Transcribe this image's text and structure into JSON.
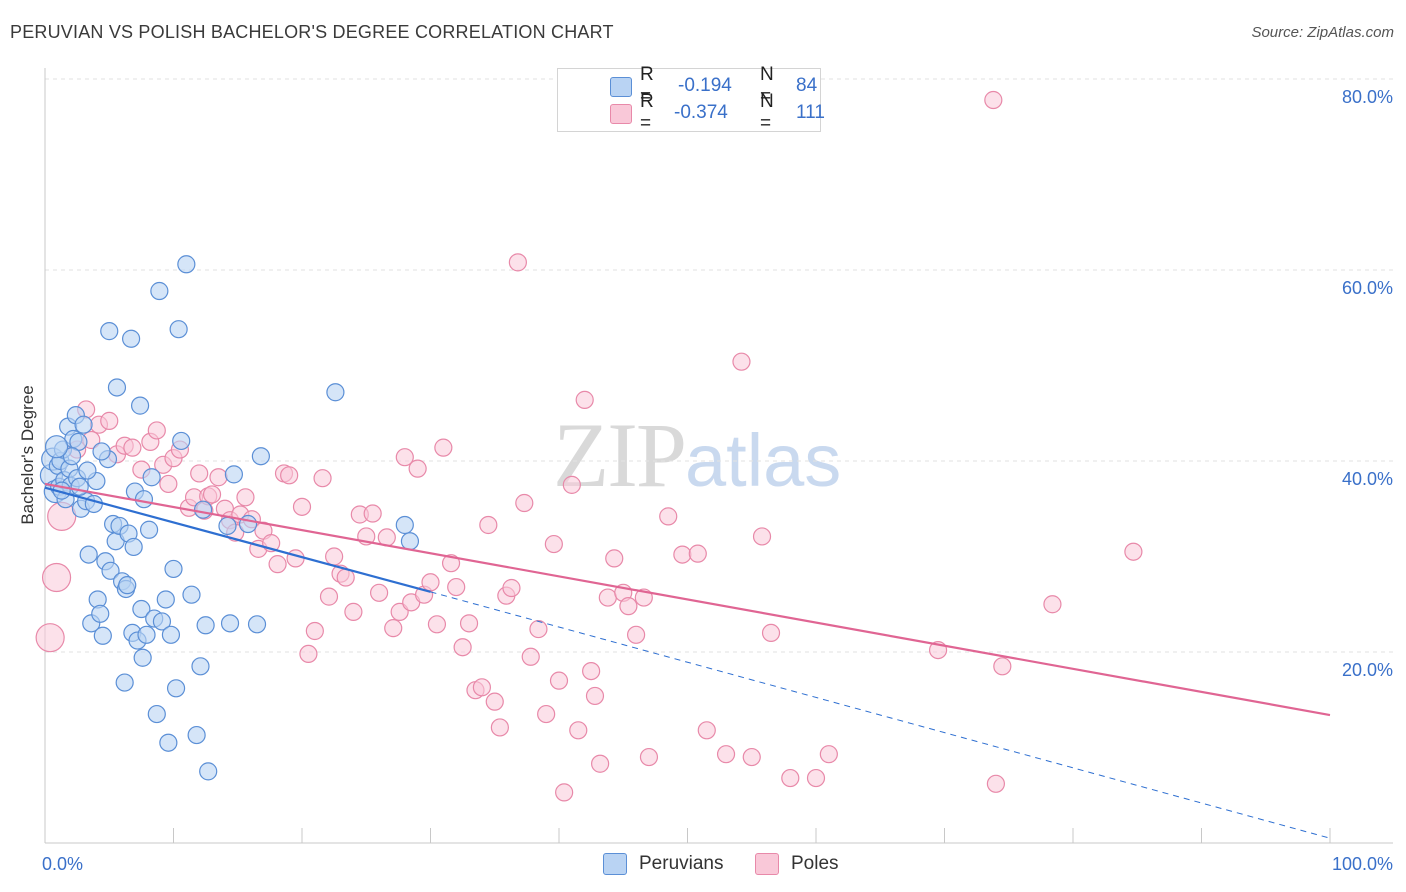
{
  "header": {
    "title": "PERUVIAN VS POLISH BACHELOR'S DEGREE CORRELATION CHART",
    "source": "Source: ZipAtlas.com"
  },
  "watermark": {
    "zip": "ZIP",
    "atlas": "atlas"
  },
  "legend": {
    "peruvians": {
      "r_label": "R =",
      "r_value": "-0.194",
      "n_label": "N =",
      "n_value": "84"
    },
    "poles": {
      "r_label": "R =",
      "r_value": "-0.374",
      "n_label": "N =",
      "n_value": "111"
    }
  },
  "bottom_legend": {
    "peruvians": "Peruvians",
    "poles": "Poles"
  },
  "colors": {
    "peruvians_fill": "#b9d3f3",
    "peruvians_stroke": "#5b8fd6",
    "peruvians_line": "#2e6fd1",
    "poles_fill": "#f9c8d8",
    "poles_stroke": "#e889a9",
    "poles_line": "#e06593",
    "axis_text": "#3a70c9",
    "grid": "#e2e2e2"
  },
  "chart_data": {
    "type": "scatter",
    "title": "PERUVIAN VS POLISH BACHELOR'S DEGREE CORRELATION CHART",
    "xlabel": "",
    "ylabel": "Bachelor's Degree",
    "xlim": [
      0,
      100
    ],
    "ylim": [
      0,
      80
    ],
    "x_tick_labels": [
      "0.0%",
      "100.0%"
    ],
    "y_ticks": [
      20,
      40,
      60,
      80
    ],
    "y_tick_labels": [
      "20.0%",
      "40.0%",
      "60.0%",
      "80.0%"
    ],
    "grid": true,
    "series": [
      {
        "name": "Peruvians",
        "R": -0.194,
        "N": 84,
        "trend": {
          "x": [
            0,
            30
          ],
          "y": [
            37.2,
            26.3
          ]
        },
        "trend_extension": {
          "x": [
            30,
            100
          ],
          "y": [
            26.3,
            0.5
          ]
        },
        "points": [
          [
            0.5,
            38.5
          ],
          [
            0.6,
            40.2
          ],
          [
            0.8,
            36.8
          ],
          [
            1.0,
            39.5
          ],
          [
            1.1,
            37.3
          ],
          [
            1.2,
            40.0
          ],
          [
            1.4,
            41.2
          ],
          [
            1.5,
            38.0
          ],
          [
            1.6,
            36.0
          ],
          [
            1.8,
            43.6
          ],
          [
            1.9,
            39.2
          ],
          [
            2.0,
            37.4
          ],
          [
            2.2,
            42.3
          ],
          [
            2.4,
            44.8
          ],
          [
            2.5,
            38.2
          ],
          [
            2.6,
            42.0
          ],
          [
            2.8,
            35.0
          ],
          [
            3.0,
            43.8
          ],
          [
            3.2,
            35.8
          ],
          [
            3.4,
            30.2
          ],
          [
            3.6,
            23.0
          ],
          [
            3.8,
            35.5
          ],
          [
            4.0,
            37.9
          ],
          [
            4.1,
            25.5
          ],
          [
            4.3,
            24.0
          ],
          [
            4.5,
            21.7
          ],
          [
            4.7,
            29.5
          ],
          [
            4.9,
            40.2
          ],
          [
            5.1,
            28.5
          ],
          [
            5.3,
            33.4
          ],
          [
            5.5,
            31.6
          ],
          [
            5.6,
            47.7
          ],
          [
            5.8,
            33.2
          ],
          [
            6.0,
            27.4
          ],
          [
            6.2,
            16.8
          ],
          [
            6.3,
            26.6
          ],
          [
            6.5,
            32.4
          ],
          [
            6.7,
            52.8
          ],
          [
            6.8,
            22.0
          ],
          [
            6.9,
            31.0
          ],
          [
            7.0,
            36.8
          ],
          [
            7.2,
            21.2
          ],
          [
            7.4,
            45.8
          ],
          [
            7.5,
            24.5
          ],
          [
            7.7,
            36.0
          ],
          [
            7.9,
            21.8
          ],
          [
            8.1,
            32.8
          ],
          [
            8.3,
            38.3
          ],
          [
            8.5,
            23.5
          ],
          [
            8.7,
            13.5
          ],
          [
            8.9,
            57.8
          ],
          [
            9.1,
            23.2
          ],
          [
            9.4,
            25.5
          ],
          [
            9.6,
            10.5
          ],
          [
            9.8,
            21.8
          ],
          [
            10.0,
            28.7
          ],
          [
            10.2,
            16.2
          ],
          [
            10.4,
            53.8
          ],
          [
            10.6,
            42.1
          ],
          [
            11.0,
            60.6
          ],
          [
            11.4,
            26.0
          ],
          [
            11.8,
            11.3
          ],
          [
            12.1,
            18.5
          ],
          [
            12.3,
            34.9
          ],
          [
            12.5,
            22.8
          ],
          [
            12.7,
            7.5
          ],
          [
            14.2,
            33.2
          ],
          [
            14.4,
            23.0
          ],
          [
            14.7,
            38.6
          ],
          [
            15.8,
            33.4
          ],
          [
            16.5,
            22.9
          ],
          [
            16.8,
            40.5
          ],
          [
            22.6,
            47.2
          ],
          [
            28.0,
            33.3
          ],
          [
            28.4,
            31.6
          ],
          [
            5.0,
            53.6
          ],
          [
            2.1,
            40.5
          ],
          [
            3.3,
            39.0
          ],
          [
            6.4,
            27.0
          ],
          [
            1.3,
            36.9
          ],
          [
            2.7,
            37.3
          ],
          [
            4.4,
            41.0
          ],
          [
            7.6,
            19.4
          ],
          [
            0.9,
            41.5
          ]
        ],
        "sizes_note": "most points size ~16px; a few larger at x<2"
      },
      {
        "name": "Poles",
        "R": -0.374,
        "N": 111,
        "trend": {
          "x": [
            0,
            100
          ],
          "y": [
            37.6,
            13.4
          ]
        },
        "points": [
          [
            0.4,
            21.5
          ],
          [
            0.9,
            27.8
          ],
          [
            1.3,
            34.2
          ],
          [
            2.5,
            41.2
          ],
          [
            3.2,
            45.4
          ],
          [
            3.6,
            42.2
          ],
          [
            4.2,
            43.8
          ],
          [
            5.0,
            44.2
          ],
          [
            5.6,
            40.7
          ],
          [
            6.2,
            41.6
          ],
          [
            6.8,
            41.4
          ],
          [
            7.5,
            39.1
          ],
          [
            8.2,
            42.0
          ],
          [
            8.7,
            43.2
          ],
          [
            9.2,
            39.6
          ],
          [
            9.6,
            37.6
          ],
          [
            10.0,
            40.3
          ],
          [
            10.5,
            41.2
          ],
          [
            11.2,
            35.1
          ],
          [
            11.6,
            36.2
          ],
          [
            12.0,
            38.7
          ],
          [
            12.4,
            34.8
          ],
          [
            12.7,
            36.3
          ],
          [
            13.0,
            36.5
          ],
          [
            13.5,
            38.3
          ],
          [
            14.0,
            35.0
          ],
          [
            14.4,
            33.8
          ],
          [
            14.8,
            32.5
          ],
          [
            15.2,
            34.4
          ],
          [
            15.6,
            36.2
          ],
          [
            16.1,
            33.9
          ],
          [
            16.6,
            30.8
          ],
          [
            17.0,
            32.7
          ],
          [
            17.6,
            31.4
          ],
          [
            18.1,
            29.2
          ],
          [
            18.6,
            38.7
          ],
          [
            19.0,
            38.5
          ],
          [
            19.5,
            29.8
          ],
          [
            20.0,
            35.2
          ],
          [
            20.5,
            19.8
          ],
          [
            21.0,
            22.2
          ],
          [
            21.6,
            38.2
          ],
          [
            22.1,
            25.8
          ],
          [
            22.5,
            30.0
          ],
          [
            23.0,
            28.2
          ],
          [
            23.4,
            27.8
          ],
          [
            24.0,
            24.2
          ],
          [
            24.5,
            34.4
          ],
          [
            25.0,
            32.1
          ],
          [
            25.5,
            34.5
          ],
          [
            26.0,
            26.2
          ],
          [
            26.6,
            32.0
          ],
          [
            27.1,
            22.5
          ],
          [
            27.6,
            24.2
          ],
          [
            28.0,
            40.4
          ],
          [
            28.5,
            25.2
          ],
          [
            29.0,
            39.2
          ],
          [
            29.5,
            26.0
          ],
          [
            30.0,
            27.3
          ],
          [
            30.5,
            22.9
          ],
          [
            31.0,
            41.4
          ],
          [
            31.6,
            29.3
          ],
          [
            32.0,
            26.8
          ],
          [
            32.5,
            20.5
          ],
          [
            33.0,
            23.0
          ],
          [
            33.5,
            16.0
          ],
          [
            34.0,
            16.3
          ],
          [
            34.5,
            33.3
          ],
          [
            35.0,
            14.8
          ],
          [
            35.4,
            12.1
          ],
          [
            35.9,
            25.9
          ],
          [
            36.3,
            26.7
          ],
          [
            36.8,
            60.8
          ],
          [
            37.3,
            35.6
          ],
          [
            37.8,
            19.5
          ],
          [
            38.4,
            22.4
          ],
          [
            39.0,
            13.5
          ],
          [
            39.6,
            31.3
          ],
          [
            40.0,
            17.0
          ],
          [
            40.4,
            5.3
          ],
          [
            41.0,
            37.5
          ],
          [
            41.5,
            11.8
          ],
          [
            42.0,
            46.4
          ],
          [
            42.5,
            18.0
          ],
          [
            42.8,
            15.4
          ],
          [
            43.2,
            8.3
          ],
          [
            43.8,
            25.7
          ],
          [
            44.3,
            29.8
          ],
          [
            45.0,
            26.2
          ],
          [
            45.4,
            24.8
          ],
          [
            46.0,
            21.8
          ],
          [
            46.6,
            25.7
          ],
          [
            47.0,
            9.0
          ],
          [
            48.5,
            34.2
          ],
          [
            49.6,
            30.2
          ],
          [
            50.8,
            30.3
          ],
          [
            51.5,
            11.8
          ],
          [
            53.0,
            9.3
          ],
          [
            54.2,
            50.4
          ],
          [
            55.0,
            9.0
          ],
          [
            55.8,
            32.1
          ],
          [
            56.5,
            22.0
          ],
          [
            58.0,
            6.8
          ],
          [
            60.0,
            6.8
          ],
          [
            61.0,
            9.3
          ],
          [
            69.5,
            20.2
          ],
          [
            74.0,
            6.2
          ],
          [
            74.5,
            18.5
          ],
          [
            73.8,
            77.8
          ],
          [
            78.4,
            25.0
          ],
          [
            84.7,
            30.5
          ]
        ],
        "sizes_note": "most points size ~16px; a few larger (~24px) at x<4"
      }
    ]
  }
}
